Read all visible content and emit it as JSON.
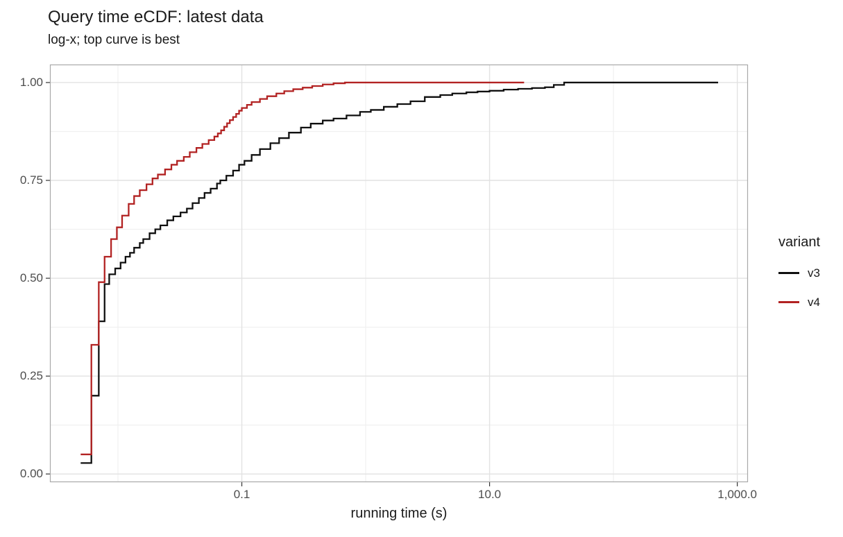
{
  "header": {
    "title": "Query time eCDF: latest data",
    "subtitle": "log-x; top curve is best"
  },
  "chart_data": {
    "type": "line",
    "step": true,
    "title": "Query time eCDF: latest data",
    "subtitle": "log-x; top curve is best",
    "xlabel": "running time (s)",
    "ylabel": "",
    "xscale": "log10",
    "legend_title": "variant",
    "legend_position": "right",
    "grid": true,
    "ylim": [
      0,
      1
    ],
    "panel_x_log_range": [
      -2.549,
      3.086
    ],
    "panel_y_range": [
      -0.021,
      1.046
    ],
    "x_ticks": [
      {
        "v": 0.1,
        "label": "0.1"
      },
      {
        "v": 10,
        "label": "10.0"
      },
      {
        "v": 1000,
        "label": "1,000.0"
      }
    ],
    "x_minor": [
      0.01,
      1,
      100
    ],
    "y_ticks": [
      {
        "v": 0,
        "label": "0.00"
      },
      {
        "v": 0.25,
        "label": "0.25"
      },
      {
        "v": 0.5,
        "label": "0.50"
      },
      {
        "v": 0.75,
        "label": "0.75"
      },
      {
        "v": 1,
        "label": "1.00"
      }
    ],
    "y_minor": [
      0.125,
      0.375,
      0.625,
      0.875
    ],
    "colors": {
      "grid_major": "#e2e2e2",
      "grid_minor": "#f0f0f0",
      "panel_border": "#a9a9a9",
      "tick_mark": "#333333",
      "axis_text": "#4d4d4d"
    },
    "series": [
      {
        "name": "v3",
        "color": "#101010",
        "points": [
          [
            0.005,
            0.028
          ],
          [
            0.0061,
            0.2
          ],
          [
            0.007,
            0.39
          ],
          [
            0.0078,
            0.485
          ],
          [
            0.0085,
            0.51
          ],
          [
            0.0095,
            0.525
          ],
          [
            0.0105,
            0.54
          ],
          [
            0.0115,
            0.555
          ],
          [
            0.0125,
            0.565
          ],
          [
            0.0135,
            0.578
          ],
          [
            0.015,
            0.59
          ],
          [
            0.016,
            0.6
          ],
          [
            0.018,
            0.615
          ],
          [
            0.02,
            0.625
          ],
          [
            0.022,
            0.635
          ],
          [
            0.025,
            0.648
          ],
          [
            0.028,
            0.658
          ],
          [
            0.032,
            0.668
          ],
          [
            0.036,
            0.678
          ],
          [
            0.04,
            0.692
          ],
          [
            0.045,
            0.705
          ],
          [
            0.05,
            0.718
          ],
          [
            0.056,
            0.729
          ],
          [
            0.063,
            0.742
          ],
          [
            0.067,
            0.75
          ],
          [
            0.075,
            0.762
          ],
          [
            0.085,
            0.775
          ],
          [
            0.095,
            0.79
          ],
          [
            0.105,
            0.8
          ],
          [
            0.12,
            0.815
          ],
          [
            0.14,
            0.83
          ],
          [
            0.17,
            0.845
          ],
          [
            0.2,
            0.858
          ],
          [
            0.24,
            0.872
          ],
          [
            0.3,
            0.885
          ],
          [
            0.36,
            0.895
          ],
          [
            0.45,
            0.903
          ],
          [
            0.55,
            0.908
          ],
          [
            0.7,
            0.916
          ],
          [
            0.9,
            0.925
          ],
          [
            1.1,
            0.93
          ],
          [
            1.4,
            0.938
          ],
          [
            1.8,
            0.945
          ],
          [
            2.3,
            0.952
          ],
          [
            3,
            0.963
          ],
          [
            4,
            0.968
          ],
          [
            5,
            0.972
          ],
          [
            6.5,
            0.975
          ],
          [
            8,
            0.977
          ],
          [
            10,
            0.979
          ],
          [
            13,
            0.982
          ],
          [
            17,
            0.984
          ],
          [
            22,
            0.986
          ],
          [
            28,
            0.988
          ],
          [
            33,
            0.994
          ],
          [
            40,
            1.0
          ],
          [
            700,
            1.0
          ]
        ]
      },
      {
        "name": "v4",
        "color": "#b22222",
        "points": [
          [
            0.005,
            0.05
          ],
          [
            0.0061,
            0.33
          ],
          [
            0.007,
            0.49
          ],
          [
            0.0078,
            0.555
          ],
          [
            0.0088,
            0.6
          ],
          [
            0.0098,
            0.63
          ],
          [
            0.0108,
            0.66
          ],
          [
            0.0122,
            0.69
          ],
          [
            0.0135,
            0.71
          ],
          [
            0.015,
            0.725
          ],
          [
            0.017,
            0.74
          ],
          [
            0.019,
            0.755
          ],
          [
            0.021,
            0.765
          ],
          [
            0.024,
            0.778
          ],
          [
            0.027,
            0.79
          ],
          [
            0.03,
            0.8
          ],
          [
            0.034,
            0.81
          ],
          [
            0.038,
            0.822
          ],
          [
            0.043,
            0.833
          ],
          [
            0.048,
            0.843
          ],
          [
            0.054,
            0.853
          ],
          [
            0.06,
            0.862
          ],
          [
            0.064,
            0.87
          ],
          [
            0.068,
            0.878
          ],
          [
            0.072,
            0.887
          ],
          [
            0.076,
            0.896
          ],
          [
            0.08,
            0.904
          ],
          [
            0.085,
            0.912
          ],
          [
            0.09,
            0.92
          ],
          [
            0.095,
            0.928
          ],
          [
            0.1,
            0.935
          ],
          [
            0.11,
            0.943
          ],
          [
            0.12,
            0.95
          ],
          [
            0.14,
            0.958
          ],
          [
            0.16,
            0.965
          ],
          [
            0.19,
            0.972
          ],
          [
            0.22,
            0.978
          ],
          [
            0.26,
            0.983
          ],
          [
            0.31,
            0.987
          ],
          [
            0.37,
            0.991
          ],
          [
            0.45,
            0.995
          ],
          [
            0.55,
            0.998
          ],
          [
            0.68,
            1.0
          ],
          [
            19,
            1.0
          ]
        ]
      }
    ]
  },
  "x_axis": {
    "title": "running time (s)"
  }
}
